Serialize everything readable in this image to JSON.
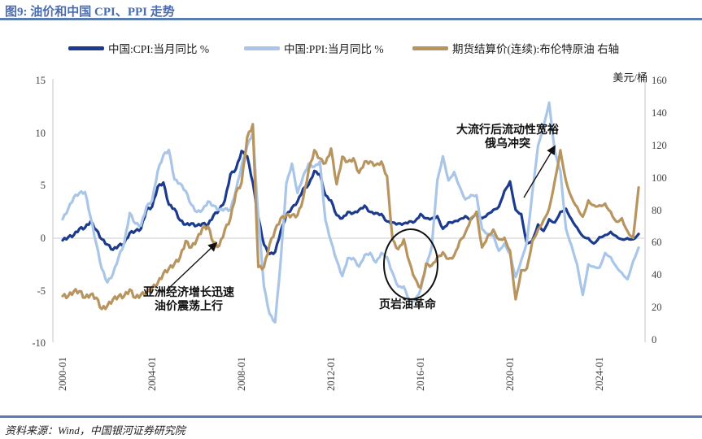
{
  "title": "图9: 油价和中国 CPI、PPI 走势",
  "source": "资料来源：Wind，中国银河证券研究院",
  "annotations": {
    "asia": {
      "line1": "亚洲经济增长迅速",
      "line2": "油价震荡上行"
    },
    "shale": {
      "text": "页岩油革命"
    },
    "pandemic": {
      "line1": "大流行后流动性宽裕",
      "line2": "俄乌冲突"
    }
  },
  "colors": {
    "title_blue": "#4a6cb0",
    "rule_blue": "#5b7cb0",
    "axis_line": "#cfcfcf",
    "zero_line": "#d8d8d8"
  },
  "chart_data": {
    "type": "line",
    "title": "油价和中国 CPI、PPI 走势",
    "x_start": 2000.0,
    "x_step": 0.25,
    "x_ticks": [
      {
        "year": 2000,
        "label": "2000-01"
      },
      {
        "year": 2004,
        "label": "2004-01"
      },
      {
        "year": 2008,
        "label": "2008-01"
      },
      {
        "year": 2012,
        "label": "2012-01"
      },
      {
        "year": 2016,
        "label": "2016-01"
      },
      {
        "year": 2020,
        "label": "2020-01"
      },
      {
        "year": 2024,
        "label": "2024-01"
      }
    ],
    "left_axis": {
      "ticks": [
        15,
        10,
        5,
        0,
        -5,
        -10
      ],
      "range": [
        -10,
        15
      ],
      "label": "%"
    },
    "right_axis": {
      "ticks": [
        160,
        140,
        120,
        100,
        80,
        60,
        40,
        20,
        0
      ],
      "range": [
        0,
        160
      ],
      "unit": "美元/桶"
    },
    "grid": "zero-line-only",
    "legend_position": "top",
    "series": [
      {
        "id": "cpi",
        "name": "中国:CPI:当月同比 %",
        "axis": "left",
        "color": "#1c3b8e",
        "values": [
          -0.2,
          0.1,
          0.3,
          0.9,
          1.0,
          1.6,
          0.8,
          -0.1,
          -0.6,
          -1.1,
          -0.7,
          -0.5,
          0.5,
          0.7,
          0.9,
          2.7,
          3.0,
          4.9,
          5.3,
          3.2,
          2.8,
          1.7,
          1.3,
          1.4,
          1.2,
          1.4,
          1.3,
          2.2,
          2.7,
          3.6,
          6.1,
          6.6,
          8.3,
          7.8,
          5.3,
          2.0,
          -0.6,
          -1.5,
          -1.3,
          0.7,
          2.2,
          2.9,
          3.5,
          4.7,
          5.1,
          6.4,
          6.1,
          4.1,
          3.6,
          2.2,
          1.9,
          2.5,
          2.4,
          2.7,
          3.1,
          2.5,
          2.4,
          2.3,
          1.6,
          1.5,
          1.4,
          1.4,
          1.6,
          1.6,
          2.3,
          1.9,
          1.9,
          2.1,
          0.9,
          1.5,
          1.6,
          1.8,
          2.1,
          1.8,
          2.5,
          1.9,
          2.3,
          2.7,
          3.0,
          4.5,
          5.4,
          2.7,
          2.3,
          -0.5,
          -0.2,
          1.3,
          0.7,
          1.8,
          1.5,
          2.5,
          2.8,
          1.8,
          1.0,
          0.2,
          0.0,
          -0.5,
          0.1,
          0.3,
          0.6,
          0.2,
          -0.1,
          0.0,
          -0.1,
          0.4
        ]
      },
      {
        "id": "ppi",
        "name": "中国:PPI:当月同比 %",
        "axis": "left",
        "color": "#a9c6e8",
        "values": [
          1.8,
          2.8,
          3.9,
          4.3,
          4.4,
          2.0,
          -0.5,
          -2.9,
          -4.2,
          -3.4,
          -1.8,
          -0.5,
          2.4,
          1.4,
          1.2,
          3.0,
          3.6,
          6.4,
          7.9,
          8.4,
          5.6,
          5.2,
          4.5,
          3.2,
          2.5,
          2.7,
          3.5,
          3.1,
          2.7,
          2.8,
          2.7,
          4.6,
          6.9,
          8.8,
          10.1,
          2.0,
          -4.6,
          -7.2,
          -8.0,
          -2.1,
          5.2,
          7.1,
          4.3,
          5.9,
          7.1,
          6.8,
          7.3,
          1.7,
          -0.3,
          -2.1,
          -3.6,
          -1.9,
          -1.9,
          -2.7,
          -1.6,
          -1.4,
          -2.3,
          -1.4,
          -1.8,
          -3.3,
          -4.6,
          -4.6,
          -5.9,
          -5.9,
          -4.9,
          -2.6,
          -0.8,
          5.5,
          7.8,
          5.5,
          6.3,
          4.9,
          3.7,
          4.1,
          4.1,
          0.9,
          0.4,
          0.3,
          -1.2,
          -0.5,
          -1.5,
          -3.7,
          -2.1,
          -0.4,
          4.4,
          8.8,
          10.7,
          12.9,
          8.3,
          6.4,
          0.9,
          -0.7,
          -2.5,
          -5.4,
          -2.5,
          -2.7,
          -2.8,
          -1.4,
          -1.8,
          -2.7,
          -3.3,
          -3.9,
          -2.2,
          -0.9
        ]
      },
      {
        "id": "brent",
        "name": "期货结算价(连续):布伦特原油 右轴",
        "axis": "right",
        "color": "#b8945f",
        "values": [
          27,
          27,
          30,
          30,
          26,
          28,
          26,
          19,
          21,
          25,
          27,
          27,
          31,
          26,
          28,
          29,
          32,
          35,
          41,
          44,
          47,
          51,
          61,
          57,
          62,
          69,
          70,
          60,
          58,
          68,
          75,
          91,
          97,
          125,
          133,
          45,
          45,
          59,
          68,
          75,
          77,
          77,
          77,
          87,
          105,
          117,
          112,
          109,
          118,
          96,
          113,
          110,
          112,
          103,
          110,
          110,
          108,
          110,
          101,
          62,
          56,
          62,
          48,
          38,
          32,
          47,
          46,
          51,
          54,
          50,
          52,
          61,
          66,
          75,
          79,
          57,
          64,
          68,
          62,
          63,
          55,
          25,
          43,
          44,
          61,
          68,
          74,
          81,
          98,
          117,
          98,
          88,
          82,
          76,
          86,
          83,
          83,
          84,
          79,
          73,
          75,
          67,
          63,
          94
        ]
      }
    ]
  }
}
